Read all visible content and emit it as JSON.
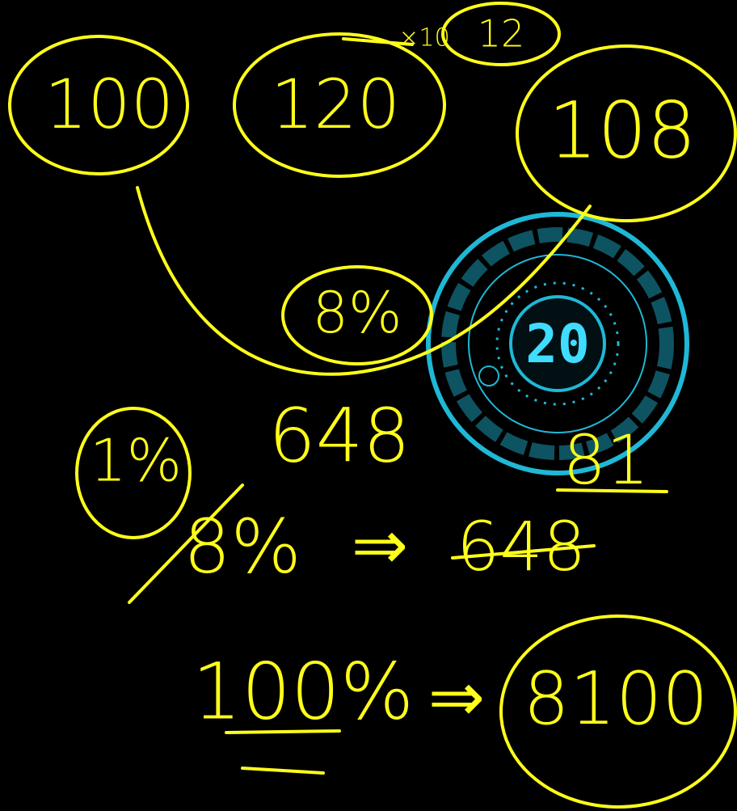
{
  "circled": [
    "100",
    "120",
    "108"
  ],
  "note": {
    "multiplier": "×10",
    "result": "12"
  },
  "middle": "8%",
  "timer": "20",
  "row": {
    "percent": "1%",
    "left": "648",
    "right": "81"
  },
  "equation1": {
    "left": "8%",
    "arrow": "⇒",
    "right": "648"
  },
  "equation2": {
    "left": "100%",
    "arrow": "⇒",
    "right": "8100"
  }
}
